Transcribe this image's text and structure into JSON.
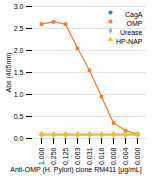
{
  "chart_data": {
    "type": "line",
    "xlabel": "Anti-OMP (H. Pylori) clone RM411 [μg/mL]",
    "ylabel": "Abs (405nm)",
    "categories": [
      "1.000",
      "0.250",
      "0.125",
      "0.063",
      "0.031",
      "0.016",
      "0.008",
      "0.004",
      "0.000"
    ],
    "series": [
      {
        "name": "CagA",
        "color": "#4472C4",
        "marker": "circle",
        "values": [
          0.09,
          0.09,
          0.09,
          0.09,
          0.09,
          0.09,
          0.09,
          0.09,
          0.09
        ]
      },
      {
        "name": "OMP",
        "color": "#ED7D31",
        "marker": "square",
        "values": [
          2.6,
          2.65,
          2.6,
          2.05,
          1.55,
          0.95,
          0.35,
          0.18,
          0.1
        ]
      },
      {
        "name": "Urease",
        "color": "#A9A9A9",
        "marker": "diamond",
        "values": [
          0.09,
          0.09,
          0.09,
          0.09,
          0.09,
          0.09,
          0.09,
          0.09,
          0.09
        ]
      },
      {
        "name": "HP-NAP",
        "color": "#FFC000",
        "marker": "triangle",
        "values": [
          0.1,
          0.1,
          0.1,
          0.1,
          0.1,
          0.1,
          0.1,
          0.1,
          0.1
        ]
      }
    ],
    "ylim": [
      0.0,
      3.0
    ],
    "yticks": [
      {
        "value": 0.0,
        "label": "0.0"
      },
      0.5,
      {
        "value": 1.0,
        "label": "1.0"
      },
      1.5,
      {
        "value": 2.0,
        "label": "2.0"
      },
      2.5,
      {
        "value": 3.0,
        "label": "3.0"
      }
    ],
    "grid": true,
    "legend": "upper right"
  }
}
